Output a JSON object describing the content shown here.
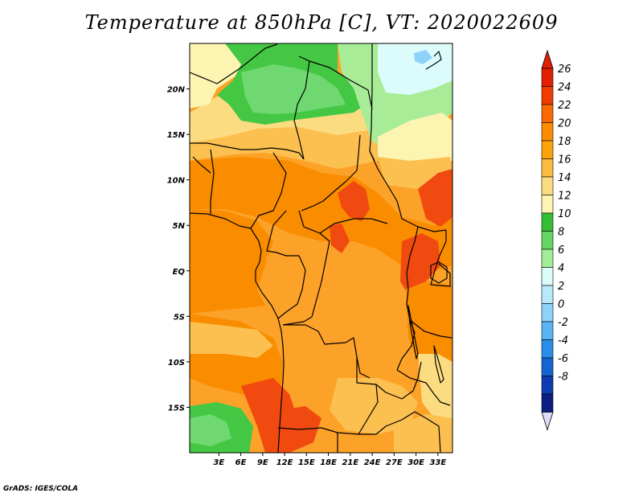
{
  "title": "Temperature at 850hPa [C], VT: 2020022609",
  "credit": "GrADS: IGES/COLA",
  "map": {
    "lon_range": [
      -1,
      35
    ],
    "lat_range": [
      -20,
      25
    ],
    "lat_ticks": [
      {
        "value": 20,
        "label": "20N"
      },
      {
        "value": 15,
        "label": "15N"
      },
      {
        "value": 10,
        "label": "10N"
      },
      {
        "value": 5,
        "label": "5N"
      },
      {
        "value": 0,
        "label": "EQ"
      },
      {
        "value": -5,
        "label": "5S"
      },
      {
        "value": -10,
        "label": "10S"
      },
      {
        "value": -15,
        "label": "15S"
      }
    ],
    "lon_ticks": [
      {
        "value": 3,
        "label": "3E"
      },
      {
        "value": 6,
        "label": "6E"
      },
      {
        "value": 9,
        "label": "9E"
      },
      {
        "value": 12,
        "label": "12E"
      },
      {
        "value": 15,
        "label": "15E"
      },
      {
        "value": 18,
        "label": "18E"
      },
      {
        "value": 21,
        "label": "21E"
      },
      {
        "value": 24,
        "label": "24E"
      },
      {
        "value": 27,
        "label": "27E"
      },
      {
        "value": 30,
        "label": "30E"
      },
      {
        "value": 33,
        "label": "33E"
      }
    ]
  },
  "colorbar": {
    "labels": [
      "26",
      "24",
      "22",
      "20",
      "18",
      "16",
      "14",
      "12",
      "10",
      "8",
      "6",
      "4",
      "2",
      "0",
      "-2",
      "-4",
      "-6",
      "-8"
    ],
    "colors": [
      "#e02000",
      "#f03c00",
      "#fa6a00",
      "#fc8c00",
      "#fca20a",
      "#fcbc40",
      "#fcdc80",
      "#fcf4b0",
      "#34be34",
      "#64d664",
      "#a2ee98",
      "#dcfcfc",
      "#b8e8fc",
      "#8ed2fa",
      "#5ab4f4",
      "#2a8ee8",
      "#1464d2",
      "#0c3cb0",
      "#0a1e84"
    ],
    "top_color": "#e02000",
    "bottom_color": "#dcdcf8"
  },
  "palette": {
    "hot": "#f04a10",
    "warm": "#fa8c00",
    "mid": "#fca228",
    "pale": "#fcc050",
    "light": "#fcdc80",
    "cream": "#fcf4b0",
    "green": "#44c844",
    "lightgreen": "#70d870",
    "palegreen": "#a8ec98",
    "cyan": "#dcfcfc",
    "blue": "#8ed2fa"
  }
}
